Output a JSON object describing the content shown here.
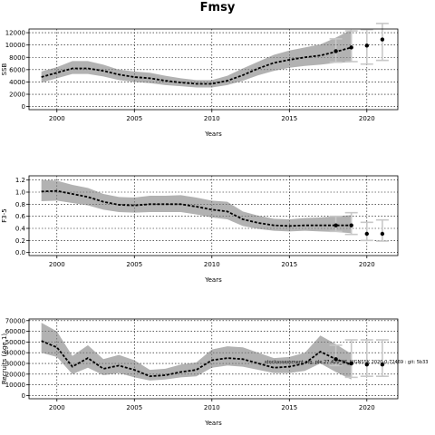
{
  "title": "Fmsy",
  "note": "stockassessment.org, ple.27.420_SS_WGNSSK 2020-0-72469 : git: 5b33",
  "chart_data": [
    {
      "type": "line",
      "ylabel": "SSB",
      "xlabel": "Years",
      "xlim": [
        1998.2,
        2022.0
      ],
      "ylim": [
        -500,
        12600
      ],
      "xticks": [
        2000,
        2005,
        2010,
        2015,
        2020
      ],
      "yticks": [
        0,
        2000,
        4000,
        6000,
        8000,
        10000,
        12000
      ],
      "grid": true,
      "historical": {
        "x": [
          1999,
          2000,
          2001,
          2002,
          2003,
          2004,
          2005,
          2006,
          2007,
          2008,
          2009,
          2010,
          2011,
          2012,
          2013,
          2014,
          2015,
          2016,
          2017,
          2018,
          2019
        ],
        "median": [
          4800,
          5500,
          6200,
          6200,
          5800,
          5200,
          4800,
          4600,
          4200,
          3900,
          3700,
          3700,
          4200,
          5100,
          6200,
          7100,
          7600,
          8000,
          8300,
          8900,
          9600
        ],
        "lower": [
          3900,
          4600,
          5300,
          5300,
          4900,
          4300,
          4000,
          3800,
          3500,
          3300,
          3100,
          3100,
          3500,
          4200,
          5100,
          5800,
          6300,
          6600,
          6800,
          7100,
          7200
        ],
        "upper": [
          5700,
          6400,
          7400,
          7400,
          6800,
          6000,
          5700,
          5500,
          5000,
          4600,
          4300,
          4300,
          5000,
          6200,
          7300,
          8400,
          9100,
          9600,
          10100,
          11200,
          12500
        ]
      },
      "forecast": [
        {
          "x": 2018,
          "median": 9000,
          "lower": 7200,
          "upper": 11000
        },
        {
          "x": 2019,
          "median": 9600,
          "lower": 7300,
          "upper": 12300
        },
        {
          "x": 2020,
          "median": 9900,
          "lower": 6900,
          "upper": 12500
        },
        {
          "x": 2021,
          "median": 10900,
          "lower": 7500,
          "upper": 13500
        }
      ]
    },
    {
      "type": "line",
      "ylabel": "F3-5",
      "xlabel": "Years",
      "xlim": [
        1998.2,
        2022.0
      ],
      "ylim": [
        -0.05,
        1.27
      ],
      "xticks": [
        2000,
        2005,
        2010,
        2015,
        2020
      ],
      "yticks": [
        0.0,
        0.2,
        0.4,
        0.6,
        0.8,
        1.0,
        1.2
      ],
      "grid": true,
      "historical": {
        "x": [
          1999,
          2000,
          2001,
          2002,
          2003,
          2004,
          2005,
          2006,
          2007,
          2008,
          2009,
          2010,
          2011,
          2012,
          2013,
          2014,
          2015,
          2016,
          2017,
          2018,
          2019
        ],
        "median": [
          1.01,
          1.02,
          0.97,
          0.92,
          0.84,
          0.79,
          0.78,
          0.8,
          0.8,
          0.8,
          0.76,
          0.71,
          0.68,
          0.55,
          0.49,
          0.45,
          0.44,
          0.45,
          0.45,
          0.45,
          0.45
        ],
        "lower": [
          0.85,
          0.86,
          0.82,
          0.78,
          0.71,
          0.67,
          0.66,
          0.67,
          0.67,
          0.67,
          0.63,
          0.58,
          0.55,
          0.44,
          0.39,
          0.36,
          0.35,
          0.36,
          0.35,
          0.34,
          0.32
        ],
        "upper": [
          1.2,
          1.19,
          1.12,
          1.07,
          0.97,
          0.92,
          0.91,
          0.94,
          0.94,
          0.95,
          0.91,
          0.86,
          0.84,
          0.68,
          0.61,
          0.56,
          0.55,
          0.57,
          0.58,
          0.6,
          0.62
        ]
      },
      "forecast": [
        {
          "x": 2018,
          "median": 0.45,
          "lower": 0.35,
          "upper": 0.6
        },
        {
          "x": 2019,
          "median": 0.45,
          "lower": 0.3,
          "upper": 0.66
        },
        {
          "x": 2020,
          "median": 0.31,
          "lower": 0.2,
          "upper": 0.5
        },
        {
          "x": 2021,
          "median": 0.31,
          "lower": 0.19,
          "upper": 0.54
        }
      ]
    },
    {
      "type": "line",
      "ylabel": "Recruits (Age 1)",
      "xlabel": "Years",
      "xlim": [
        1998.2,
        2022.0
      ],
      "ylim": [
        -3000,
        71500
      ],
      "xticks": [
        2000,
        2005,
        2010,
        2015,
        2020
      ],
      "yticks": [
        0,
        10000,
        20000,
        30000,
        40000,
        50000,
        60000,
        70000
      ],
      "grid": true,
      "historical": {
        "x": [
          1999,
          2000,
          2001,
          2002,
          2003,
          2004,
          2005,
          2006,
          2007,
          2008,
          2009,
          2010,
          2011,
          2012,
          2013,
          2014,
          2015,
          2016,
          2017,
          2018,
          2019
        ],
        "median": [
          51000,
          45000,
          27000,
          35000,
          25000,
          28000,
          24000,
          18000,
          19000,
          22000,
          24000,
          33000,
          35000,
          34000,
          30000,
          26000,
          27000,
          30000,
          41000,
          34000,
          29000
        ],
        "lower": [
          40000,
          36000,
          20000,
          26000,
          19000,
          21000,
          17000,
          14000,
          15000,
          17000,
          18000,
          26000,
          28000,
          27000,
          24000,
          21000,
          21000,
          23000,
          30000,
          22000,
          15000
        ],
        "upper": [
          68000,
          60000,
          37000,
          47000,
          34000,
          38000,
          33000,
          24000,
          25000,
          29000,
          31000,
          43000,
          46000,
          45000,
          40000,
          35000,
          36000,
          40000,
          56000,
          48000,
          39000
        ]
      },
      "forecast": [
        {
          "x": 2018,
          "median": 34000,
          "lower": 28000,
          "upper": 47000
        },
        {
          "x": 2019,
          "median": 30000,
          "lower": 17000,
          "upper": 52000
        },
        {
          "x": 2020,
          "median": 29000,
          "lower": 18000,
          "upper": 52000
        },
        {
          "x": 2021,
          "median": 29000,
          "lower": 18000,
          "upper": 52000
        }
      ]
    }
  ]
}
